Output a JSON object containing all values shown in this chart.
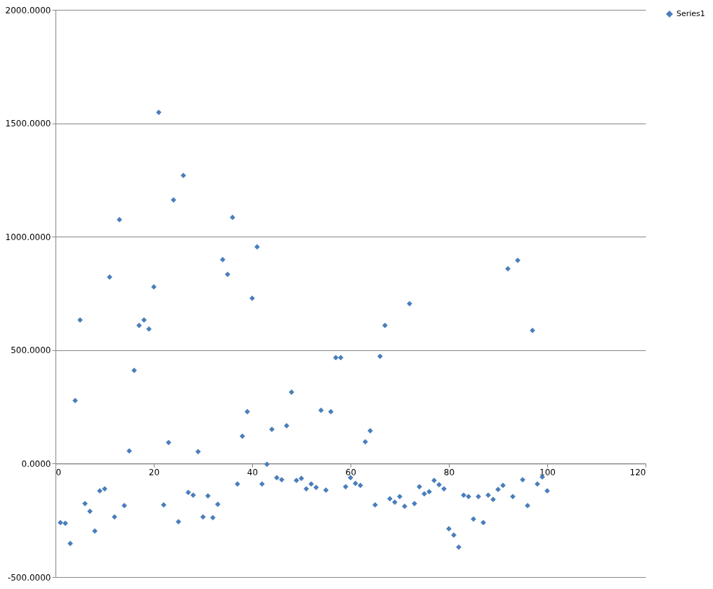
{
  "chart_data": {
    "type": "scatter",
    "x": [
      1,
      2,
      3,
      4,
      5,
      6,
      7,
      8,
      9,
      10,
      11,
      12,
      13,
      14,
      15,
      16,
      17,
      18,
      19,
      20,
      21,
      22,
      23,
      24,
      25,
      26,
      27,
      28,
      29,
      30,
      31,
      32,
      33,
      34,
      35,
      36,
      37,
      38,
      39,
      40,
      41,
      42,
      43,
      44,
      45,
      46,
      47,
      48,
      49,
      50,
      51,
      52,
      53,
      54,
      55,
      56,
      57,
      58,
      59,
      60,
      61,
      62,
      63,
      64,
      65,
      66,
      67,
      68,
      69,
      70,
      71,
      72,
      73,
      74,
      75,
      76,
      77,
      78,
      79,
      80,
      81,
      82,
      83,
      84,
      85,
      86,
      87,
      88,
      89,
      90,
      91,
      92,
      93,
      94,
      95,
      96,
      97,
      98,
      99,
      100
    ],
    "series": [
      {
        "name": "Series1",
        "color": "#4a7ebb",
        "values": [
          -260,
          -263,
          -352,
          278,
          633,
          -176,
          -210,
          -297,
          -120,
          -111,
          822,
          -235,
          1075,
          -185,
          56,
          411,
          609,
          633,
          593,
          779,
          1548,
          -182,
          93,
          1162,
          -256,
          1270,
          -127,
          -139,
          53,
          -235,
          -142,
          -238,
          -179,
          899,
          834,
          1085,
          -90,
          121,
          229,
          729,
          955,
          -90,
          -3,
          151,
          -62,
          -71,
          167,
          315,
          -74,
          -65,
          -111,
          -90,
          -105,
          235,
          -117,
          229,
          467,
          467,
          -102,
          -62,
          -87,
          -96,
          96,
          145,
          -182,
          473,
          609,
          -155,
          -170,
          -145,
          -188,
          705,
          -176,
          -102,
          -133,
          -124,
          -74,
          -93,
          -111,
          -287,
          -315,
          -368,
          -139,
          -145,
          -244,
          -145,
          -260,
          -139,
          -158,
          -114,
          -96,
          859,
          -145,
          896,
          -71,
          -185,
          587,
          -90,
          -59,
          -120
        ]
      }
    ],
    "xlim": [
      0,
      120
    ],
    "xticks": [
      0,
      20,
      40,
      60,
      80,
      100,
      120
    ],
    "ylim": [
      -500,
      2000
    ],
    "yticks": [
      {
        "value": -500,
        "label": "-500.0000"
      },
      {
        "value": 0,
        "label": "0.0000"
      },
      {
        "value": 500,
        "label": "500.0000"
      },
      {
        "value": 1000,
        "label": "1000.0000"
      },
      {
        "value": 1500,
        "label": "1500.0000"
      },
      {
        "value": 2000,
        "label": "2000.0000"
      }
    ],
    "grid": "y",
    "legend": "right",
    "marker": "diamond"
  }
}
